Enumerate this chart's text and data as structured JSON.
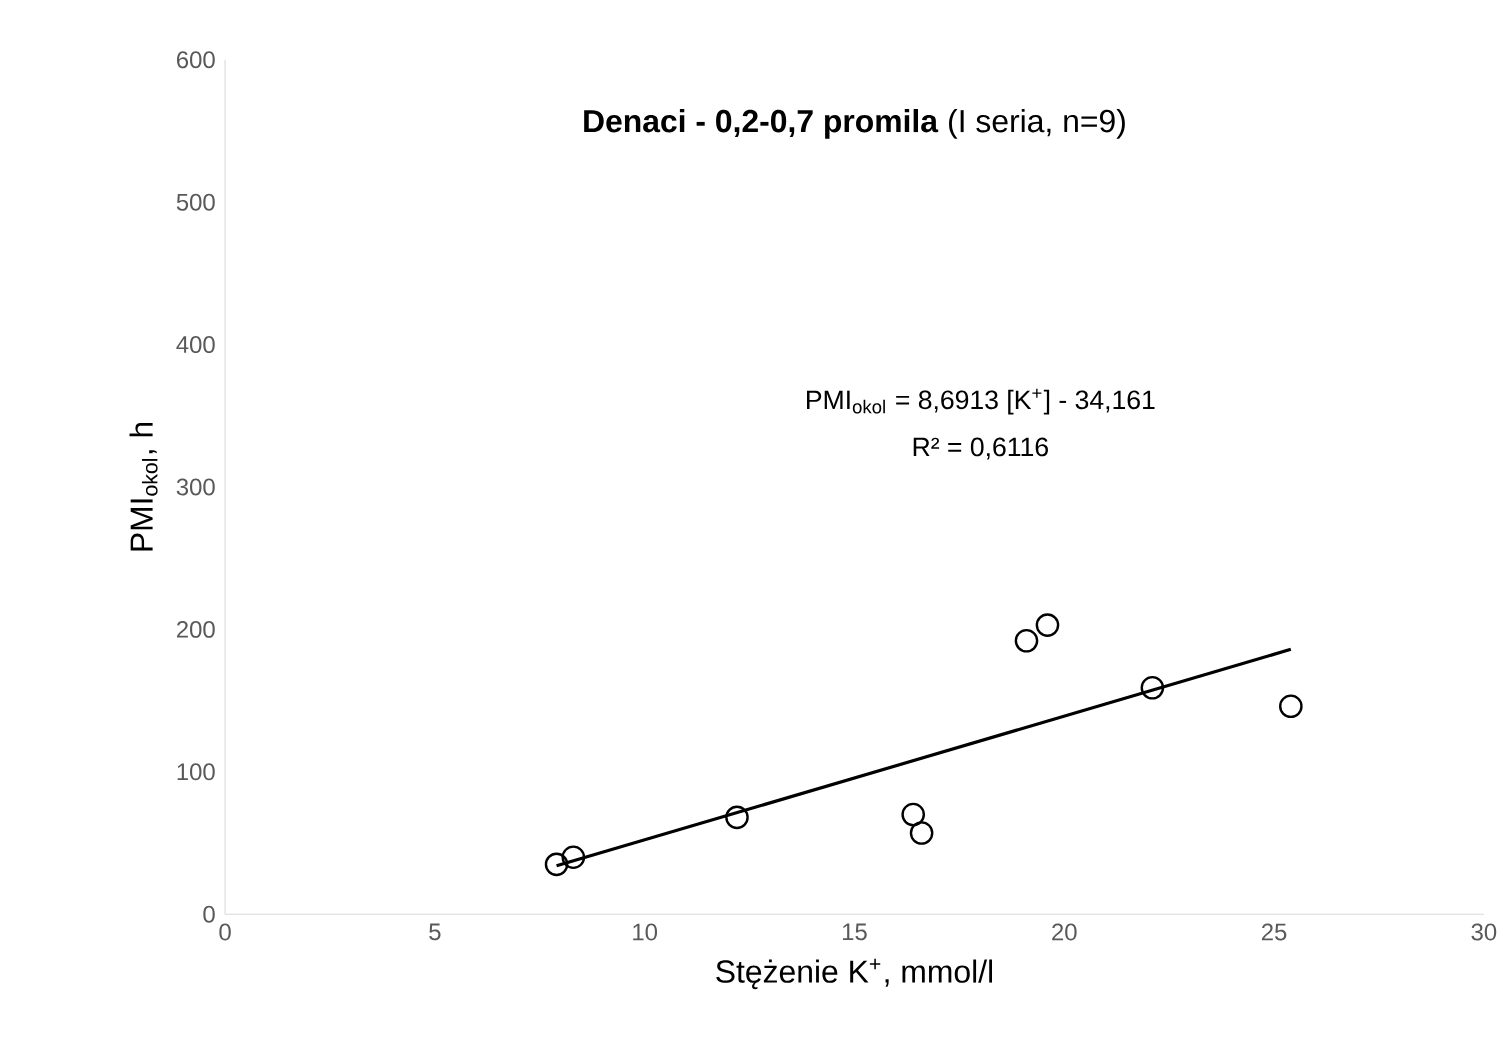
{
  "chart_data": {
    "type": "scatter",
    "title": "**Denaci - 0,2-0,7 promila** (I seria, n=9)",
    "xlabel": "Stężenie K$^{+}$, mmol/l",
    "ylabel": "PMI$_{okol}$, h",
    "annotations": [
      "PMI$_{okol}$ = 8,6913 [K$^{+}$] - 34,161",
      "R² = 0,6116"
    ],
    "xlim": [
      0,
      30
    ],
    "ylim": [
      0,
      600
    ],
    "xticks": [
      0,
      5,
      10,
      15,
      20,
      25,
      30
    ],
    "yticks": [
      0,
      100,
      200,
      300,
      400,
      500,
      600
    ],
    "series": [
      {
        "color": "#000000",
        "marker": "circle",
        "x": [
          7.9,
          8.3,
          12.2,
          16.4,
          16.6,
          19.1,
          19.6,
          22.1,
          25.4
        ],
        "values": [
          35,
          40,
          68,
          70,
          57,
          192,
          203,
          159,
          146
        ]
      },
      {
        "type": "line",
        "color": "#000000",
        "marker": "none",
        "x": [
          7.9,
          25.4
        ],
        "values": [
          34,
          186
        ]
      }
    ]
  }
}
